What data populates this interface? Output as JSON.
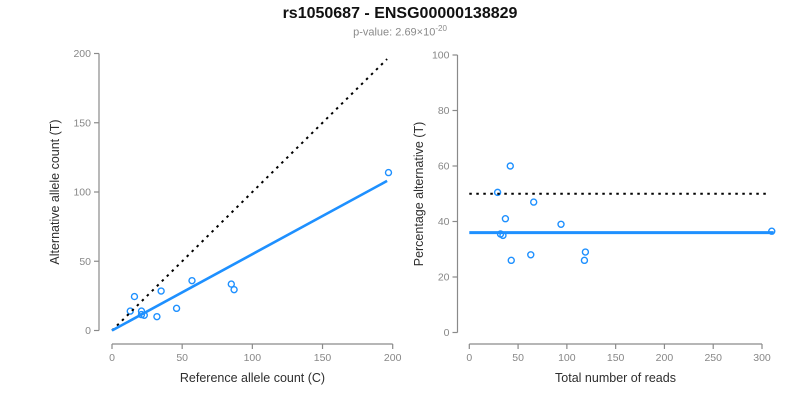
{
  "figure": {
    "title": "rs1050687 - ENSG00000138829",
    "subtitle_prefix": "p-value: 2.69×10",
    "subtitle_exponent": "-20",
    "accent_color": "#1E90FF",
    "axis_color": "#8a8a8a",
    "tick_label_color": "#878787",
    "axis_title_color": "#2e2e2e",
    "subtitle_color": "#8a8a8a"
  },
  "chart_data": [
    {
      "type": "scatter",
      "name": "allele-counts-scatter",
      "xlabel": "Reference allele count (C)",
      "ylabel": "Alternative allele count (T)",
      "xlim": [
        0,
        200
      ],
      "ylim": [
        0,
        200
      ],
      "xticks": [
        0,
        50,
        100,
        150,
        200
      ],
      "yticks": [
        0,
        50,
        100,
        150,
        200
      ],
      "grid": false,
      "points": [
        [
          13,
          14
        ],
        [
          16,
          24.5
        ],
        [
          21,
          14
        ],
        [
          21,
          11.5
        ],
        [
          23,
          11
        ],
        [
          32,
          10
        ],
        [
          35,
          28.5
        ],
        [
          46,
          16
        ],
        [
          57,
          36
        ],
        [
          85,
          33.5
        ],
        [
          87,
          29.5
        ],
        [
          197,
          114
        ]
      ],
      "lines": [
        {
          "name": "identity-line",
          "style": "dotted",
          "color": "#000000",
          "width": 2,
          "from": [
            0,
            0
          ],
          "to": [
            196,
            196
          ]
        },
        {
          "name": "fit-line",
          "style": "solid",
          "color": "#1E90FF",
          "width": 2.6,
          "from": [
            0,
            0
          ],
          "to": [
            196,
            108
          ]
        }
      ]
    },
    {
      "type": "scatter",
      "name": "percentage-vs-reads-scatter",
      "xlabel": "Total number of reads",
      "ylabel": "Percentage alternative (T)",
      "xlim": [
        0,
        310
      ],
      "ylim": [
        0,
        100
      ],
      "xticks": [
        0,
        50,
        100,
        150,
        200,
        250,
        300
      ],
      "yticks": [
        0,
        20,
        40,
        60,
        80,
        100
      ],
      "grid": false,
      "points": [
        [
          29,
          50.5
        ],
        [
          42,
          60
        ],
        [
          37,
          41
        ],
        [
          32,
          35.5
        ],
        [
          34.5,
          35
        ],
        [
          43,
          26
        ],
        [
          66,
          47
        ],
        [
          63,
          28
        ],
        [
          94,
          39
        ],
        [
          119,
          29
        ],
        [
          118,
          26
        ],
        [
          310,
          36.5
        ]
      ],
      "lines": [
        {
          "name": "expected-percentage-line",
          "style": "dotted",
          "color": "#000000",
          "width": 2,
          "from": [
            0,
            50
          ],
          "to": [
            306,
            50
          ]
        },
        {
          "name": "mean-percentage-line",
          "style": "solid",
          "color": "#1E90FF",
          "width": 3,
          "from": [
            0,
            36
          ],
          "to": [
            312,
            36
          ]
        }
      ]
    }
  ]
}
